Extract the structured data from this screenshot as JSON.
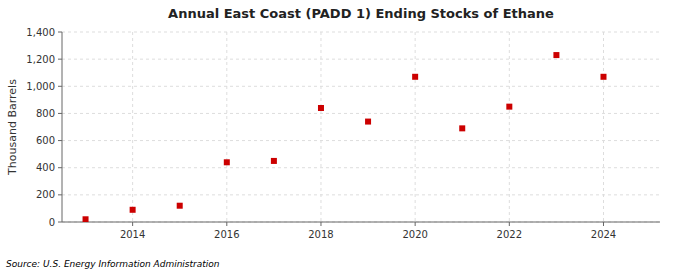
{
  "chart_data": {
    "type": "scatter",
    "title": "Annual East Coast (PADD 1) Ending Stocks of Ethane",
    "y_label": "Thousand Barrels",
    "source": "Source: U.S. Energy Information Administration",
    "x": [
      2013,
      2014,
      2015,
      2016,
      2017,
      2018,
      2019,
      2020,
      2021,
      2022,
      2023,
      2024
    ],
    "values": [
      20,
      90,
      120,
      440,
      450,
      840,
      740,
      1070,
      690,
      850,
      1230,
      1070
    ],
    "color": "#cc0000",
    "marker": "square",
    "xlim": [
      2012.5,
      2025.2
    ],
    "xticks": [
      2014,
      2016,
      2018,
      2020,
      2022,
      2024
    ],
    "ylim": [
      0,
      1400
    ],
    "yticks": [
      0,
      200,
      400,
      600,
      800,
      {
        "value": 1000,
        "label": "1,000"
      },
      {
        "value": 1200,
        "label": "1,200"
      },
      {
        "value": 1400,
        "label": "1,400"
      }
    ],
    "grid": true
  }
}
